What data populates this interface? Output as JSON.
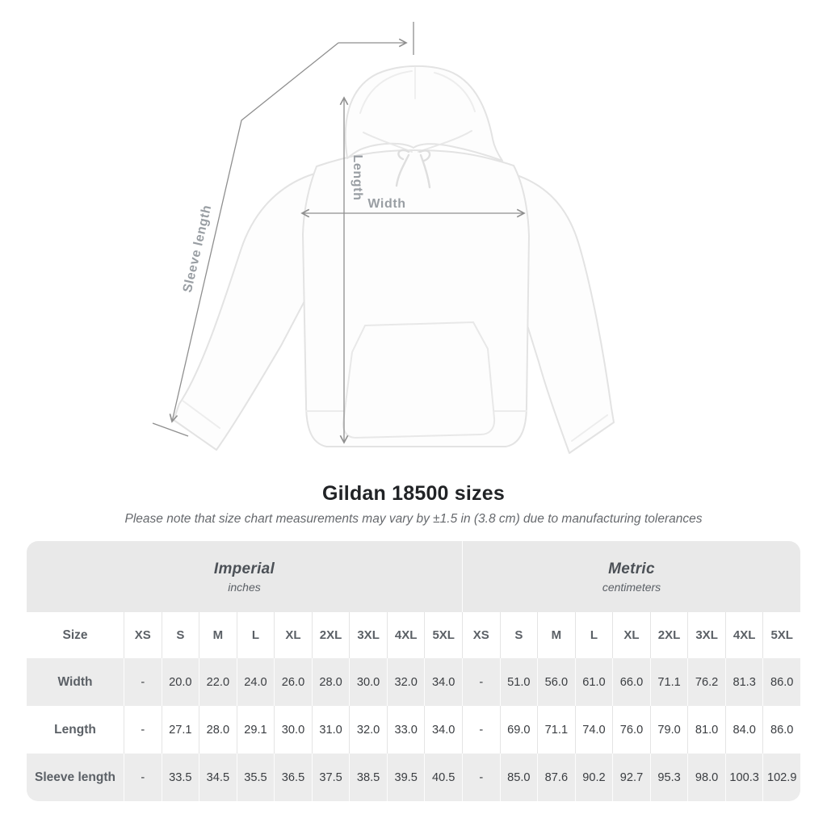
{
  "diagram": {
    "sleeve_label": "Sleeve length",
    "length_label": "Length",
    "width_label": "Width"
  },
  "title": "Gildan 18500 sizes",
  "subtitle": "Please note that size chart measurements may vary by ±1.5 in (3.8 cm) due to manufacturing tolerances",
  "table": {
    "size_header": "Size",
    "unit_groups": [
      {
        "label": "Imperial",
        "sublabel": "inches"
      },
      {
        "label": "Metric",
        "sublabel": "centimeters"
      }
    ],
    "sizes": [
      "XS",
      "S",
      "M",
      "L",
      "XL",
      "2XL",
      "3XL",
      "4XL",
      "5XL"
    ],
    "rows": [
      {
        "label": "Width",
        "imperial": [
          "-",
          "20.0",
          "22.0",
          "24.0",
          "26.0",
          "28.0",
          "30.0",
          "32.0",
          "34.0"
        ],
        "metric": [
          "-",
          "51.0",
          "56.0",
          "61.0",
          "66.0",
          "71.1",
          "76.2",
          "81.3",
          "86.0"
        ]
      },
      {
        "label": "Length",
        "imperial": [
          "-",
          "27.1",
          "28.0",
          "29.1",
          "30.0",
          "31.0",
          "32.0",
          "33.0",
          "34.0"
        ],
        "metric": [
          "-",
          "69.0",
          "71.1",
          "74.0",
          "76.0",
          "79.0",
          "81.0",
          "84.0",
          "86.0"
        ]
      },
      {
        "label": "Sleeve length",
        "imperial": [
          "-",
          "33.5",
          "34.5",
          "35.5",
          "36.5",
          "37.5",
          "38.5",
          "39.5",
          "40.5"
        ],
        "metric": [
          "-",
          "85.0",
          "87.6",
          "90.2",
          "92.7",
          "95.3",
          "98.0",
          "100.3",
          "102.9"
        ]
      }
    ]
  },
  "chart_data": {
    "type": "table",
    "title": "Gildan 18500 sizes",
    "note": "Measurements may vary by ±1.5 in (3.8 cm) due to manufacturing tolerances",
    "sizes": [
      "XS",
      "S",
      "M",
      "L",
      "XL",
      "2XL",
      "3XL",
      "4XL",
      "5XL"
    ],
    "measures": [
      "Width",
      "Length",
      "Sleeve length"
    ],
    "imperial_inches": {
      "Width": [
        null,
        20.0,
        22.0,
        24.0,
        26.0,
        28.0,
        30.0,
        32.0,
        34.0
      ],
      "Length": [
        null,
        27.1,
        28.0,
        29.1,
        30.0,
        31.0,
        32.0,
        33.0,
        34.0
      ],
      "Sleeve length": [
        null,
        33.5,
        34.5,
        35.5,
        36.5,
        37.5,
        38.5,
        39.5,
        40.5
      ]
    },
    "metric_centimeters": {
      "Width": [
        null,
        51.0,
        56.0,
        61.0,
        66.0,
        71.1,
        76.2,
        81.3,
        86.0
      ],
      "Length": [
        null,
        69.0,
        71.1,
        74.0,
        76.0,
        79.0,
        81.0,
        84.0,
        86.0
      ],
      "Sleeve length": [
        null,
        85.0,
        87.6,
        90.2,
        92.7,
        95.3,
        98.0,
        100.3,
        102.9
      ]
    }
  },
  "colors": {
    "band_gray": "#e9e9e9",
    "row_gray": "#ececec",
    "measure_line": "#8f8f8f",
    "measure_label": "#999ea3",
    "header_text": "#5b6066",
    "value_text": "#3b3e42",
    "title_text": "#212326",
    "subtitle_text": "#66696d"
  }
}
